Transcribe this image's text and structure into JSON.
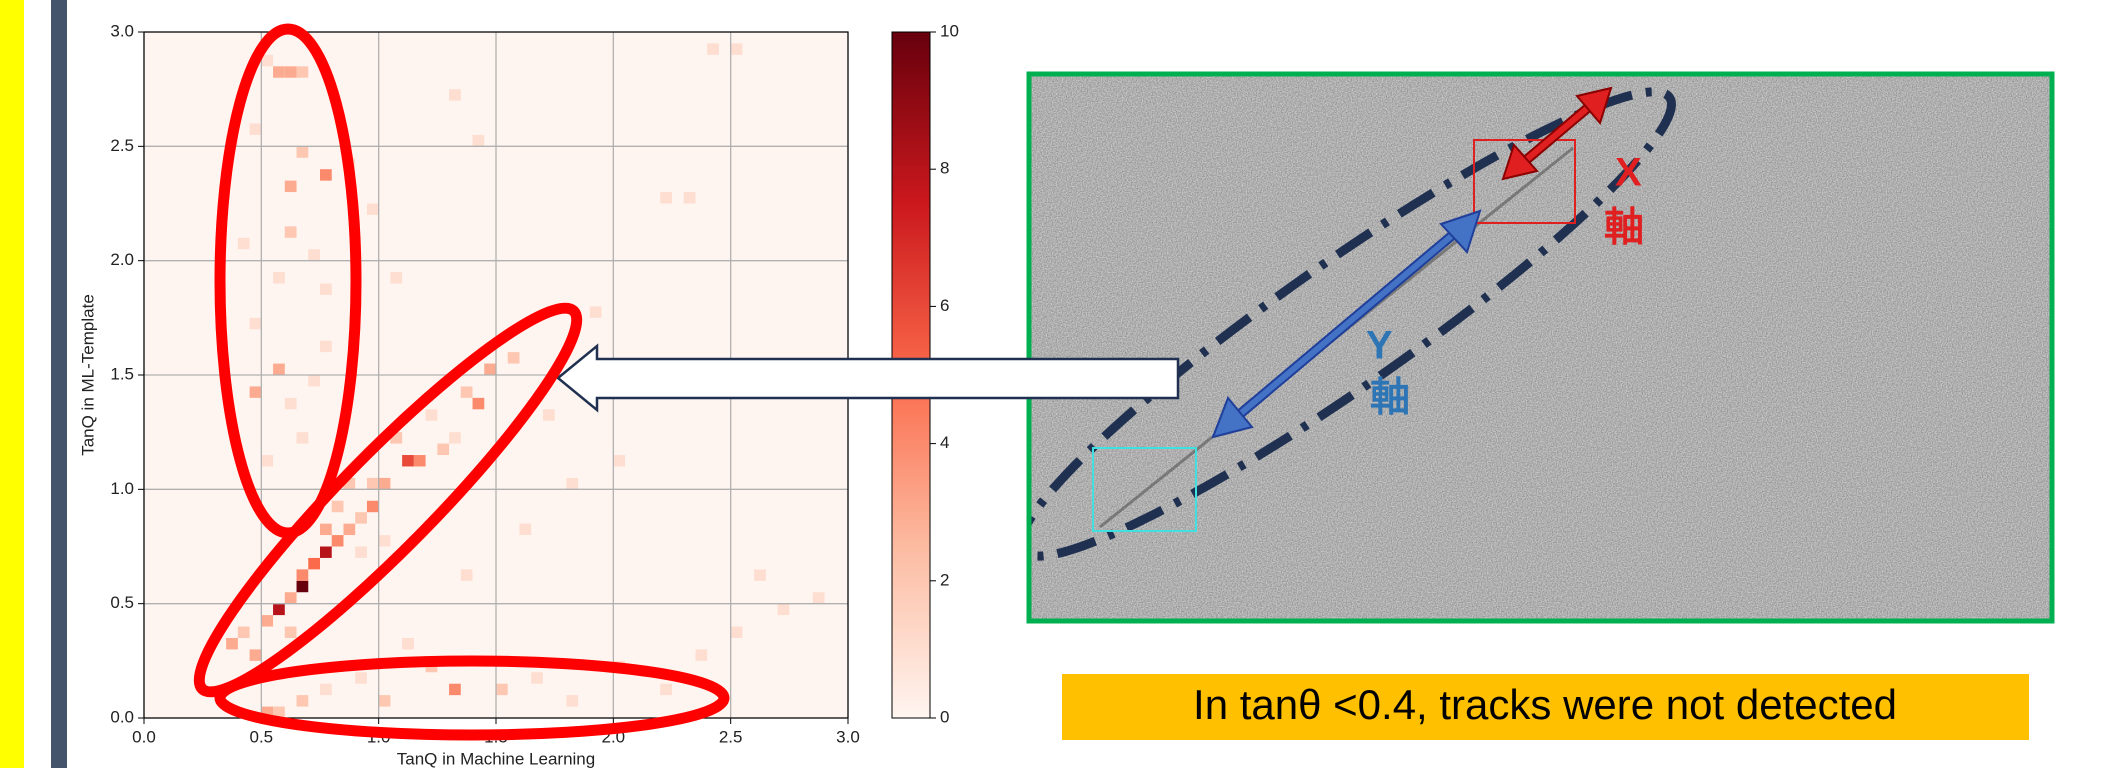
{
  "chart_data": {
    "type": "heatmap",
    "xlabel": "TanQ in Machine Learning",
    "ylabel": "TanQ in ML-Template",
    "xlim": [
      0,
      3
    ],
    "ylim": [
      0,
      3
    ],
    "xticks": [
      {
        "value": 0,
        "label": "0.0"
      },
      {
        "value": 0.5,
        "label": "0.5"
      },
      {
        "value": 1,
        "label": "1.0"
      },
      {
        "value": 1.5,
        "label": "1.5"
      },
      {
        "value": 2,
        "label": "2.0"
      },
      {
        "value": 2.5,
        "label": "2.5"
      },
      {
        "value": 3,
        "label": "3.0"
      }
    ],
    "yticks": [
      {
        "value": 0,
        "label": "0.0"
      },
      {
        "value": 0.5,
        "label": "0.5"
      },
      {
        "value": 1,
        "label": "1.0"
      },
      {
        "value": 1.5,
        "label": "1.5"
      },
      {
        "value": 2,
        "label": "2.0"
      },
      {
        "value": 2.5,
        "label": "2.5"
      },
      {
        "value": 3,
        "label": "3.0"
      }
    ],
    "grid": true,
    "cells_x": [
      0.55,
      0.6,
      0.65,
      0.5,
      0.75,
      0.6,
      0.45,
      0.65,
      0.4,
      0.6,
      0.7,
      0.75,
      0.55,
      0.45,
      0.55,
      0.45,
      0.6,
      0.75,
      0.65,
      0.5,
      0.35,
      0.85,
      0.95,
      0.7,
      0.45,
      0.35,
      0.4,
      0.5,
      0.55,
      0.6,
      0.65,
      0.65,
      0.7,
      0.75,
      0.8,
      0.75,
      0.85,
      0.8,
      0.9,
      0.95,
      0.85,
      0.95,
      1.0,
      1.1,
      1.15,
      1.05,
      1.25,
      1.2,
      1.4,
      1.35,
      1.45,
      1.55,
      1.3,
      0.9,
      0.6,
      1.0,
      0.5,
      0.55,
      0.65,
      0.75,
      1.3,
      1.0,
      1.2,
      1.5,
      1.65,
      1.8,
      2.0,
      2.2,
      2.35,
      0.9,
      1.1,
      2.7,
      2.85,
      2.5,
      1.7,
      1.9,
      2.2,
      2.3,
      1.4,
      2.4,
      2.5,
      1.3,
      2.0,
      1.6,
      1.8,
      2.6,
      1.05,
      1.35
    ],
    "cells_y": [
      2.8,
      2.8,
      2.8,
      2.85,
      2.35,
      2.3,
      2.55,
      2.45,
      2.05,
      2.1,
      2.0,
      1.85,
      1.9,
      1.7,
      1.5,
      1.4,
      1.35,
      1.6,
      1.2,
      1.1,
      2.5,
      2.4,
      2.2,
      1.45,
      0.25,
      0.3,
      0.35,
      0.4,
      0.45,
      0.5,
      0.55,
      0.6,
      0.65,
      0.7,
      0.75,
      0.8,
      0.8,
      0.9,
      0.85,
      0.9,
      1.0,
      1.0,
      1.0,
      1.1,
      1.1,
      1.2,
      1.15,
      1.3,
      1.35,
      1.4,
      1.5,
      1.55,
      1.2,
      0.7,
      0.35,
      0.75,
      0.0,
      0.0,
      0.05,
      0.1,
      0.1,
      0.05,
      0.2,
      0.1,
      0.15,
      0.05,
      0.2,
      0.1,
      0.25,
      0.15,
      0.3,
      0.45,
      0.5,
      0.35,
      1.3,
      1.75,
      2.25,
      2.25,
      2.5,
      2.9,
      2.9,
      2.7,
      1.1,
      0.8,
      1.0,
      0.6,
      1.9,
      0.6
    ],
    "values": [
      3,
      3,
      2,
      1,
      4,
      3,
      1,
      2,
      1,
      2,
      1,
      1,
      1,
      1,
      3,
      3,
      1,
      1,
      1,
      1,
      1,
      1,
      1,
      1,
      3,
      3,
      2,
      3,
      8,
      3,
      10,
      4,
      5,
      8,
      4,
      3,
      3,
      2,
      2,
      4,
      2,
      2,
      3,
      6,
      4,
      2,
      2,
      1,
      4,
      2,
      3,
      2,
      1,
      1,
      2,
      1,
      3,
      2,
      2,
      1,
      4,
      2,
      2,
      2,
      1,
      1,
      1,
      1,
      1,
      1,
      1,
      1,
      1,
      1,
      1,
      1,
      1,
      1,
      1,
      1,
      1,
      1,
      1,
      1,
      1,
      1,
      1,
      1
    ],
    "colorbar": {
      "lim": [
        0,
        10
      ],
      "ticks": [
        0,
        2,
        4,
        6,
        8,
        10
      ]
    }
  },
  "panel": {
    "x_label": [
      "X",
      "軸"
    ],
    "y_label": [
      "Y",
      "軸"
    ],
    "caption": "In tanθ <0.4, tracks were not detected"
  }
}
